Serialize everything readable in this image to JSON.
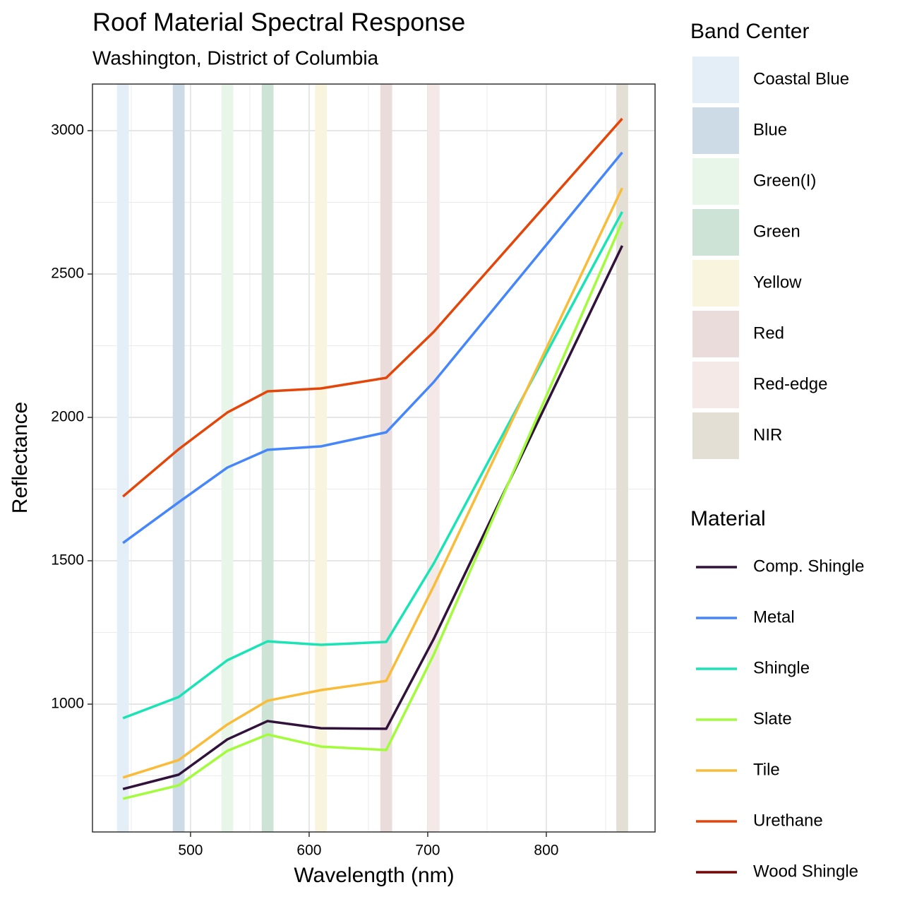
{
  "chart_data": {
    "type": "line",
    "title": "Roof Material Spectral Response",
    "subtitle": "Washington, District of Columbia",
    "x_label": "Wavelength (nm)",
    "y_label": "Reflectance",
    "x": [
      443,
      490,
      531,
      565,
      610,
      665,
      705,
      864
    ],
    "xlim": [
      417.3,
      891.7
    ],
    "xticks": [
      500,
      600,
      700,
      800
    ],
    "xminor": [
      450,
      550,
      650,
      750,
      850
    ],
    "ylim": [
      554.2,
      3162.6
    ],
    "yticks": [
      1000,
      1500,
      2000,
      2500,
      3000
    ],
    "yminor": [
      750,
      1250,
      1750,
      2250,
      2750
    ],
    "grid": true,
    "band_legend_title": "Band Center",
    "band_width": 10,
    "bands": [
      {
        "name": "Coastal Blue",
        "center": 443,
        "color": "#e3eef6"
      },
      {
        "name": "Blue",
        "center": 490,
        "color": "#ccdbe6"
      },
      {
        "name": "Green(I)",
        "center": 531,
        "color": "#e8f5e9"
      },
      {
        "name": "Green",
        "center": 565,
        "color": "#cde3d5"
      },
      {
        "name": "Yellow",
        "center": 610,
        "color": "#f9f4dd"
      },
      {
        "name": "Red",
        "center": 665,
        "color": "#eadcdb"
      },
      {
        "name": "Red-edge",
        "center": 705,
        "color": "#f5e9e8"
      },
      {
        "name": "NIR",
        "center": 864,
        "color": "#e4dfd5"
      }
    ],
    "legend_title": "Material",
    "series": [
      {
        "name": "Comp. Shingle",
        "color": "#30123b",
        "values": [
          704,
          754,
          877,
          941,
          916,
          914,
          1227,
          2599
        ]
      },
      {
        "name": "Metal",
        "color": "#4686fb",
        "values": [
          1562,
          1704,
          1825,
          1887,
          1899,
          1948,
          2123,
          2924
        ]
      },
      {
        "name": "Shingle",
        "color": "#1ae4b6",
        "values": [
          951,
          1025,
          1153,
          1219,
          1207,
          1217,
          1490,
          2717
        ]
      },
      {
        "name": "Slate",
        "color": "#a2fc3c",
        "values": [
          670,
          717,
          837,
          894,
          852,
          840,
          1172,
          2682
        ]
      },
      {
        "name": "Tile",
        "color": "#fabb39",
        "values": [
          744,
          805,
          929,
          1012,
          1049,
          1081,
          1411,
          2800
        ]
      },
      {
        "name": "Urethane",
        "color": "#e4460a",
        "values": [
          1724,
          1889,
          2017,
          2091,
          2101,
          2138,
          2298,
          3042
        ]
      },
      {
        "name": "Wood Shingle",
        "color": "#7a0403",
        "values": [
          null,
          null,
          null,
          null,
          null,
          null,
          null,
          null
        ]
      }
    ]
  }
}
